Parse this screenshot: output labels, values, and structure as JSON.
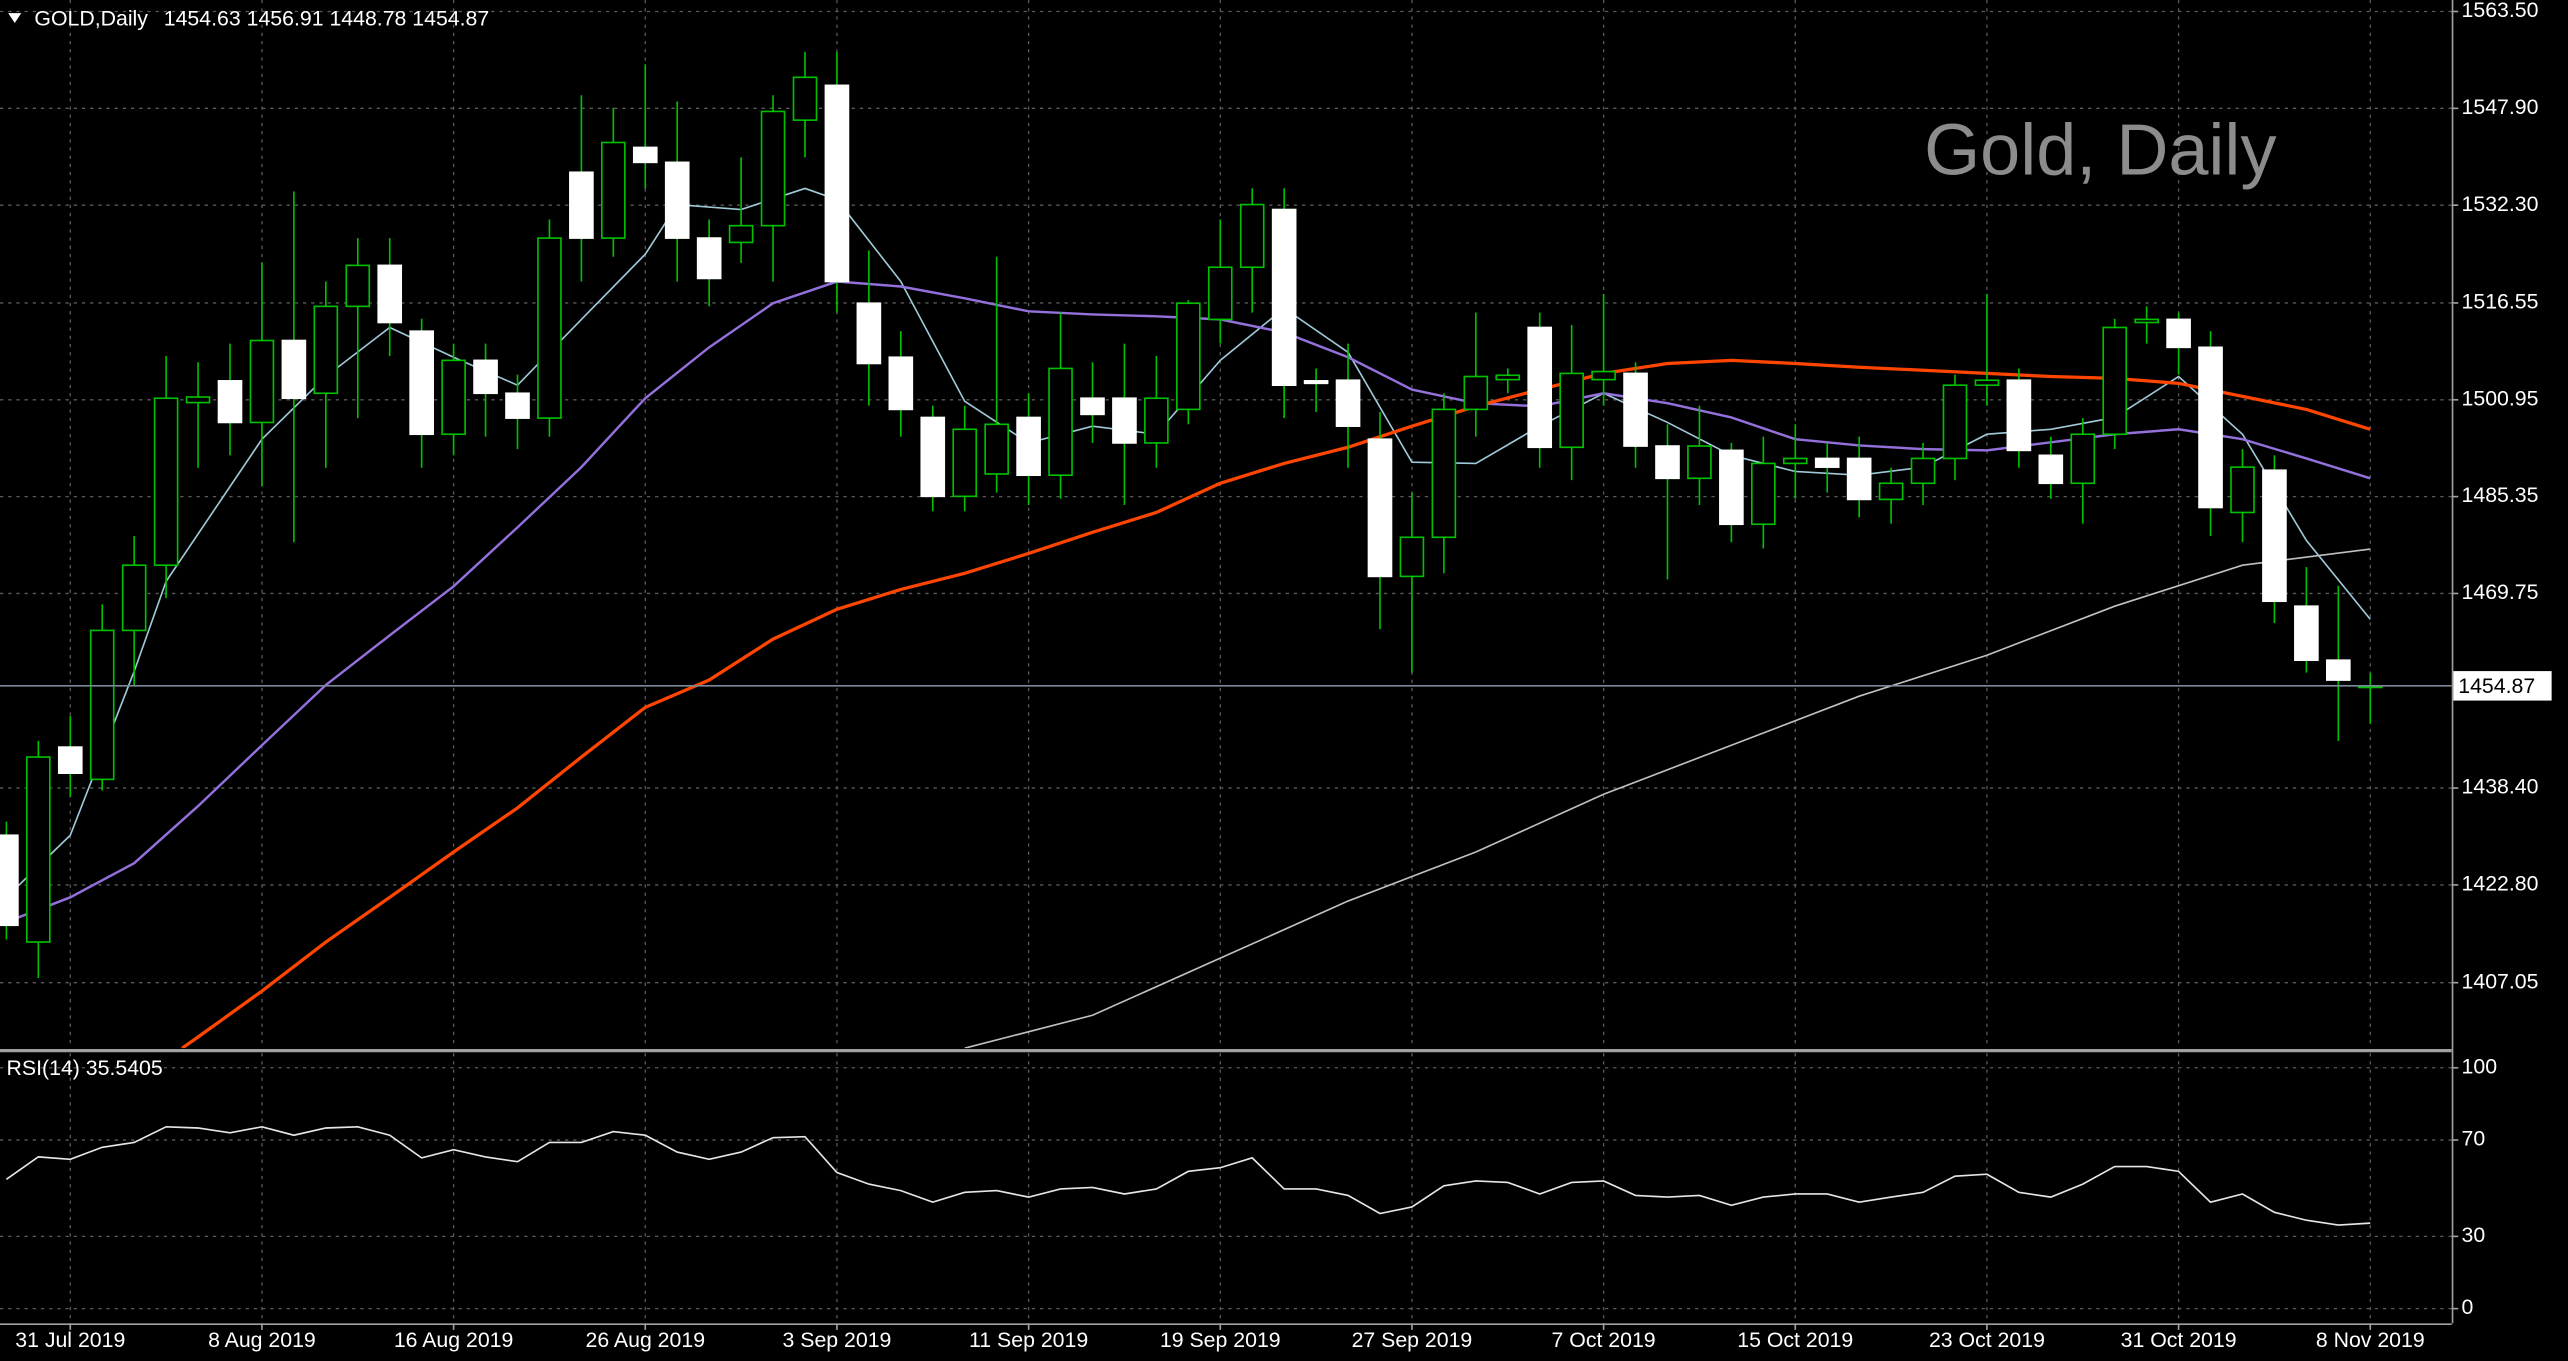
{
  "chart_data": [
    {
      "type": "candlestick",
      "title": "GOLD,Daily",
      "subtitle": "1454.63 1456.91 1448.78 1454.87",
      "annotation": "Gold, Daily",
      "open": [
        1430.8,
        1413.6,
        1445,
        1439.8,
        1463.8,
        1474.3,
        1500.5,
        1504,
        1497.3,
        1510.5,
        1502,
        1516,
        1522.6,
        1512,
        1495.4,
        1507.3,
        1502,
        1498,
        1537.6,
        1527,
        1541.6,
        1539.2,
        1527,
        1526.3,
        1529,
        1546,
        1551.6,
        1516.5,
        1507.8,
        1498.1,
        1485.4,
        1489,
        1498.1,
        1488.8,
        1501.2,
        1501.2,
        1494,
        1499.4,
        1513.9,
        1522.3,
        1531.6,
        1504,
        1504.1,
        1494.6,
        1472.5,
        1478.8,
        1499.4,
        1504.2,
        1512.6,
        1493.3,
        1504.2,
        1505.2,
        1493.5,
        1488.3,
        1492.8,
        1480.9,
        1490.7,
        1491.5,
        1491.5,
        1484.9,
        1487.5,
        1491.5,
        1503.3,
        1504.1,
        1492,
        1487.5,
        1495.4,
        1513.4,
        1513.9,
        1509.4,
        1482.8,
        1489.6,
        1467.7,
        1459,
        1454.63
      ],
      "high": [
        1433,
        1446,
        1450,
        1468,
        1479,
        1508,
        1507,
        1510,
        1523,
        1534.5,
        1520,
        1527,
        1527,
        1514,
        1510,
        1510,
        1505,
        1530,
        1550,
        1548,
        1555,
        1549,
        1530,
        1540,
        1550,
        1557,
        1557,
        1525,
        1512,
        1500,
        1500,
        1524,
        1502,
        1515,
        1507,
        1510,
        1508,
        1517,
        1530,
        1535,
        1535,
        1506,
        1510,
        1499,
        1486,
        1502,
        1515,
        1506,
        1515,
        1513,
        1518,
        1507,
        1497,
        1500,
        1494,
        1495,
        1497,
        1494,
        1495,
        1490,
        1494,
        1505,
        1518,
        1506,
        1495,
        1498,
        1514,
        1516,
        1515,
        1512,
        1493,
        1492,
        1474,
        1471,
        1456.91
      ],
      "low": [
        1414,
        1407.8,
        1437,
        1438,
        1455,
        1469,
        1490,
        1492,
        1487,
        1478,
        1490,
        1498,
        1508,
        1490,
        1492,
        1495,
        1493,
        1495,
        1520,
        1524,
        1535,
        1520,
        1516,
        1523,
        1520,
        1540,
        1515,
        1500,
        1495,
        1483,
        1483,
        1486,
        1484,
        1485,
        1494,
        1484,
        1490,
        1497,
        1510,
        1515,
        1498,
        1499,
        1490,
        1464,
        1457,
        1473,
        1495,
        1502,
        1490,
        1488,
        1500,
        1490,
        1472,
        1484,
        1478,
        1477,
        1485,
        1486,
        1482,
        1481,
        1484,
        1488,
        1500,
        1490,
        1485,
        1481,
        1493,
        1510,
        1505,
        1479,
        1478,
        1465,
        1457,
        1446,
        1448.78
      ],
      "close": [
        1416.3,
        1443.4,
        1440.8,
        1463.8,
        1474.3,
        1501.2,
        1501.4,
        1497.3,
        1510.5,
        1501.2,
        1516,
        1522.6,
        1513.4,
        1495.4,
        1507.3,
        1502,
        1498,
        1527,
        1527,
        1542.4,
        1539.2,
        1527,
        1520.5,
        1529,
        1547.4,
        1552.9,
        1520,
        1506.8,
        1499.4,
        1485.4,
        1496.2,
        1497,
        1488.8,
        1506,
        1498.6,
        1494,
        1501.2,
        1516.5,
        1522.3,
        1532.4,
        1503.3,
        1503.6,
        1496.7,
        1472.5,
        1478.8,
        1499.4,
        1504.7,
        1504.9,
        1493.3,
        1505.2,
        1505.5,
        1493.5,
        1488.3,
        1493.5,
        1480.9,
        1490.7,
        1491.5,
        1490.1,
        1484.9,
        1487.5,
        1491.5,
        1503.3,
        1504.1,
        1492.8,
        1487.5,
        1495.4,
        1512.6,
        1513.9,
        1509.4,
        1483.6,
        1490.1,
        1468.5,
        1459,
        1455.8,
        1454.87
      ],
      "wick_color": "#00c000",
      "up_color": "#000000",
      "up_border_color": "#00c000",
      "down_color": "#ffffff",
      "series": [
        {
          "color": "#9fc9d9",
          "x": [
            0,
            2,
            4,
            5,
            8,
            10,
            12,
            14,
            16,
            18,
            20,
            21,
            23,
            25,
            26,
            28,
            30,
            32,
            34,
            36,
            38,
            40,
            42,
            44,
            46,
            48,
            50,
            52,
            54,
            56,
            58,
            60,
            62,
            64,
            66,
            68,
            70,
            72,
            74
          ],
          "values": [
            1420.8,
            1430.8,
            1457.2,
            1471.7,
            1494.6,
            1504.7,
            1512.6,
            1507.8,
            1503.3,
            1513.9,
            1524.4,
            1532.4,
            1531.6,
            1535,
            1533.2,
            1520,
            1500.7,
            1494,
            1496.7,
            1495.4,
            1507.3,
            1515.7,
            1508.6,
            1490.9,
            1490.7,
            1496.7,
            1502,
            1497.3,
            1492,
            1489.4,
            1488.8,
            1490.1,
            1495.4,
            1496.2,
            1498.1,
            1504.7,
            1495.4,
            1478.3,
            1465.6
          ]
        },
        {
          "color": "#9370db",
          "x": [
            0,
            2,
            4,
            6,
            8,
            10,
            12,
            14,
            16,
            18,
            20,
            22,
            24,
            26,
            28,
            30,
            32,
            34,
            36,
            38,
            40,
            42,
            44,
            46,
            48,
            50,
            52,
            54,
            56,
            58,
            60,
            62,
            64,
            66,
            68,
            70,
            72,
            74
          ],
          "values": [
            1416.8,
            1420.8,
            1426.3,
            1435.5,
            1445.3,
            1455,
            1463,
            1470.9,
            1480.4,
            1490.1,
            1501.2,
            1509.4,
            1516.5,
            1520,
            1519.2,
            1517.3,
            1515.2,
            1514.7,
            1514.4,
            1513.9,
            1511.8,
            1507.8,
            1502.6,
            1500.4,
            1499.9,
            1502,
            1500.4,
            1498.1,
            1494.6,
            1493.6,
            1493,
            1492.8,
            1494.1,
            1495.4,
            1496.2,
            1494.6,
            1491.5,
            1488.3
          ]
        },
        {
          "color": "#ff4500",
          "x": [
            5.5,
            6,
            8,
            10,
            12,
            14,
            16,
            18,
            20,
            22,
            24,
            26,
            28,
            30,
            32,
            34,
            36,
            38,
            40,
            42,
            44,
            46,
            48,
            50,
            52,
            54,
            56,
            58,
            60,
            62,
            64,
            66,
            68,
            70,
            72,
            74
          ],
          "values": [
            1396.5,
            1398.3,
            1405.7,
            1413.6,
            1420.8,
            1428.1,
            1435.2,
            1443.4,
            1451.4,
            1455.8,
            1462.4,
            1467.2,
            1470.4,
            1473,
            1476.2,
            1479.6,
            1482.8,
            1487.5,
            1490.7,
            1493.3,
            1496.7,
            1499.9,
            1502.6,
            1505.2,
            1506.8,
            1507.3,
            1506.8,
            1506.2,
            1505.7,
            1505.2,
            1504.7,
            1504.4,
            1503.6,
            1501.5,
            1499.4,
            1496.2
          ]
        },
        {
          "color": "#c0c0c0",
          "x": [
            30,
            34,
            38,
            42,
            46,
            50,
            54,
            58,
            62,
            66,
            70,
            74
          ],
          "values": [
            1396.5,
            1401.8,
            1411,
            1420.2,
            1428.1,
            1437.4,
            1445.3,
            1453.2,
            1459.8,
            1467.7,
            1474.3,
            1476.9
          ]
        }
      ],
      "last_price": 1454.87,
      "xlim": [
        -0.2,
        76.55
      ],
      "ylim": [
        1396.5,
        1565.35
      ],
      "yticks": [
        {
          "value": 1563.5,
          "label": "1563.50"
        },
        {
          "value": 1547.9,
          "label": "1547.90"
        },
        {
          "value": 1532.3,
          "label": "1532.30"
        },
        1516.55,
        1500.95,
        1485.35,
        1469.75,
        {
          "value": 1438.4,
          "label": "1438.40"
        },
        {
          "value": 1422.8,
          "label": "1422.80"
        },
        1407.05
      ],
      "grid": true
    },
    {
      "type": "line",
      "title": "RSI(14) 35.5405",
      "values": [
        53.7,
        63,
        62,
        67,
        69,
        75.5,
        75,
        73,
        75.5,
        72,
        75,
        75.5,
        72,
        62.6,
        66,
        63,
        61,
        69,
        69,
        73.5,
        72,
        65,
        62,
        65,
        71,
        71.4,
        56.5,
        51.7,
        49,
        44.2,
        48.3,
        49,
        46.3,
        49.7,
        50.3,
        47.6,
        49.7,
        57,
        58.5,
        62.6,
        49.7,
        49.7,
        47,
        39.5,
        42.2,
        51,
        53,
        52.4,
        47.6,
        52.4,
        53,
        47,
        46.3,
        47,
        42.9,
        46.3,
        47.6,
        47.6,
        44.2,
        46.3,
        48.3,
        55,
        55.8,
        48.3,
        46.3,
        51.7,
        59,
        59,
        57,
        44.2,
        47.6,
        40,
        36.7,
        34.7,
        35.5
      ],
      "color": "#e6e6e6",
      "xlim": [
        -0.2,
        76.55
      ],
      "ylim": [
        -6.1,
        106.1
      ],
      "yticks": [
        0,
        30,
        70,
        100
      ],
      "xticks": [
        {
          "value": 2,
          "label": "31 Jul 2019"
        },
        {
          "value": 8,
          "label": "8 Aug 2019"
        },
        {
          "value": 14,
          "label": "16 Aug 2019"
        },
        {
          "value": 20,
          "label": "26 Aug 2019"
        },
        {
          "value": 26,
          "label": "3 Sep 2019"
        },
        {
          "value": 32,
          "label": "11 Sep 2019"
        },
        {
          "value": 38,
          "label": "19 Sep 2019"
        },
        {
          "value": 44,
          "label": "27 Sep 2019"
        },
        {
          "value": 50,
          "label": "7 Oct 2019"
        },
        {
          "value": 56,
          "label": "15 Oct 2019"
        },
        {
          "value": 62,
          "label": "23 Oct 2019"
        },
        {
          "value": 68,
          "label": "31 Oct 2019"
        },
        {
          "value": 74,
          "label": "8 Nov 2019"
        }
      ],
      "grid": true
    }
  ]
}
